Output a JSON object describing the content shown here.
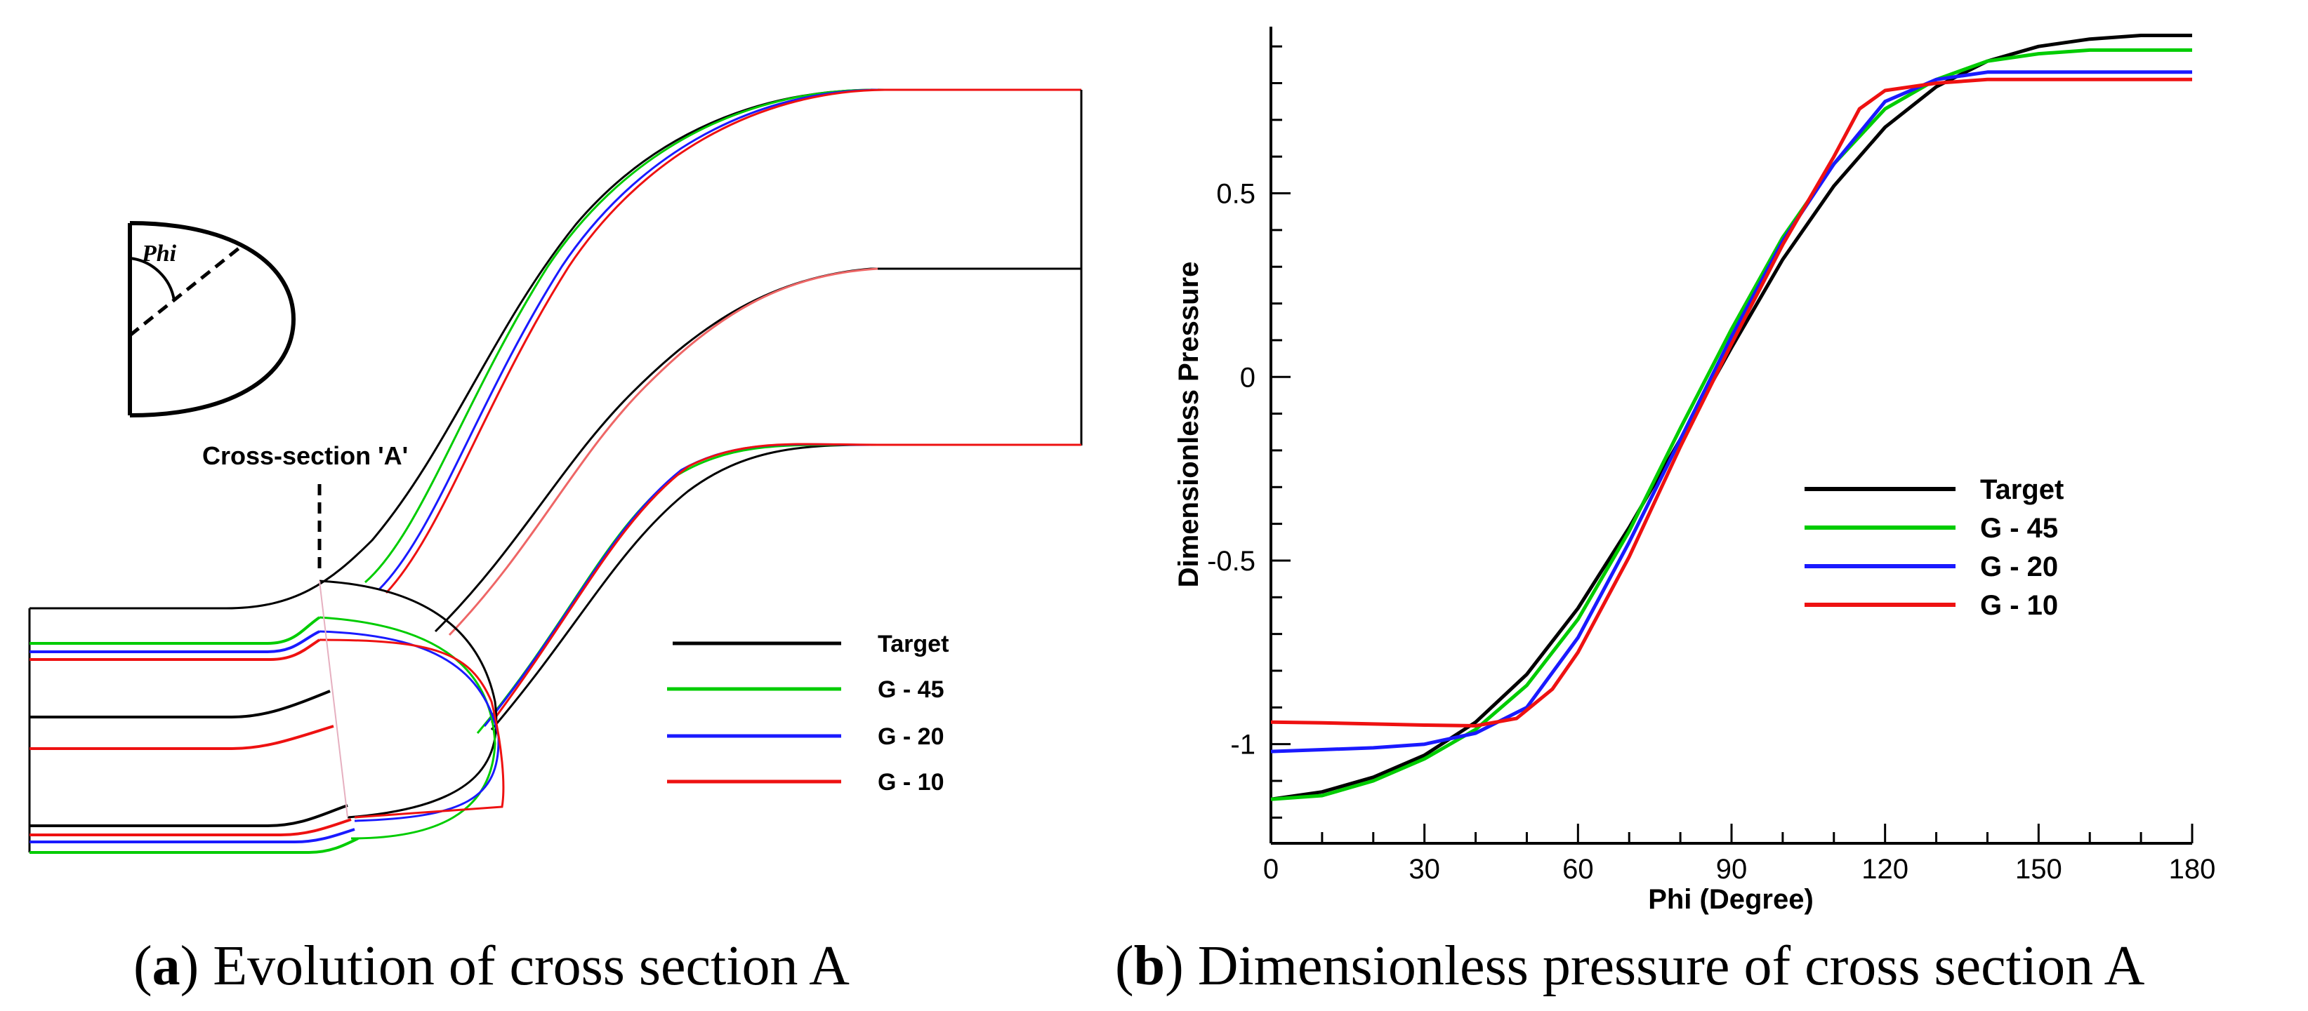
{
  "colors": {
    "target": "#000000",
    "g45": "#00cc00",
    "g20": "#1a1aff",
    "g10": "#ee1111"
  },
  "panel_a": {
    "inset_angle_label": "Phi",
    "section_label": "Cross-section 'A'",
    "legend": [
      "Target",
      "G - 45",
      "G - 20",
      "G - 10"
    ],
    "caption_letter": "a",
    "caption_text": "Evolution of cross section A"
  },
  "panel_b": {
    "caption_letter": "b",
    "caption_text": "Dimensionless pressure of cross section A"
  },
  "chart_data": {
    "type": "line",
    "title": "",
    "xlabel": "Phi (Degree)",
    "ylabel": "Dimensionless Pressure",
    "xlim": [
      0,
      180
    ],
    "ylim": [
      -1.27,
      0.95
    ],
    "xticks": [
      0,
      30,
      60,
      90,
      120,
      150,
      180
    ],
    "yticks": [
      -1,
      -0.5,
      0,
      0.5
    ],
    "ytick_labels": [
      "-1",
      "-0.5",
      "0",
      "0.5"
    ],
    "legend_position": "center-right",
    "series": [
      {
        "name": "Target",
        "color_key": "target",
        "x": [
          0,
          10,
          20,
          30,
          40,
          50,
          60,
          70,
          80,
          90,
          100,
          110,
          120,
          130,
          140,
          150,
          160,
          170,
          180
        ],
        "y": [
          -1.15,
          -1.13,
          -1.09,
          -1.03,
          -0.94,
          -0.81,
          -0.63,
          -0.41,
          -0.17,
          0.08,
          0.32,
          0.52,
          0.68,
          0.79,
          0.86,
          0.9,
          0.92,
          0.93,
          0.93
        ]
      },
      {
        "name": "G - 45",
        "color_key": "g45",
        "x": [
          0,
          10,
          20,
          30,
          40,
          50,
          60,
          70,
          80,
          90,
          100,
          110,
          120,
          130,
          140,
          150,
          160,
          170,
          180
        ],
        "y": [
          -1.15,
          -1.14,
          -1.1,
          -1.04,
          -0.96,
          -0.84,
          -0.66,
          -0.42,
          -0.14,
          0.13,
          0.38,
          0.58,
          0.73,
          0.81,
          0.86,
          0.88,
          0.89,
          0.89,
          0.89
        ]
      },
      {
        "name": "G - 20",
        "color_key": "g20",
        "x": [
          0,
          10,
          20,
          30,
          40,
          50,
          60,
          70,
          80,
          90,
          100,
          110,
          120,
          130,
          140,
          150,
          160,
          170,
          180
        ],
        "y": [
          -1.02,
          -1.015,
          -1.01,
          -1.0,
          -0.97,
          -0.9,
          -0.71,
          -0.45,
          -0.17,
          0.11,
          0.37,
          0.58,
          0.75,
          0.81,
          0.83,
          0.83,
          0.83,
          0.83,
          0.83
        ]
      },
      {
        "name": "G - 10",
        "color_key": "g10",
        "x": [
          0,
          10,
          20,
          30,
          40,
          48,
          55,
          60,
          70,
          80,
          90,
          100,
          110,
          115,
          120,
          130,
          140,
          150,
          160,
          170,
          180
        ],
        "y": [
          -0.94,
          -0.942,
          -0.945,
          -0.948,
          -0.95,
          -0.93,
          -0.85,
          -0.75,
          -0.49,
          -0.19,
          0.09,
          0.36,
          0.6,
          0.73,
          0.78,
          0.8,
          0.81,
          0.81,
          0.81,
          0.81,
          0.81
        ]
      }
    ]
  }
}
